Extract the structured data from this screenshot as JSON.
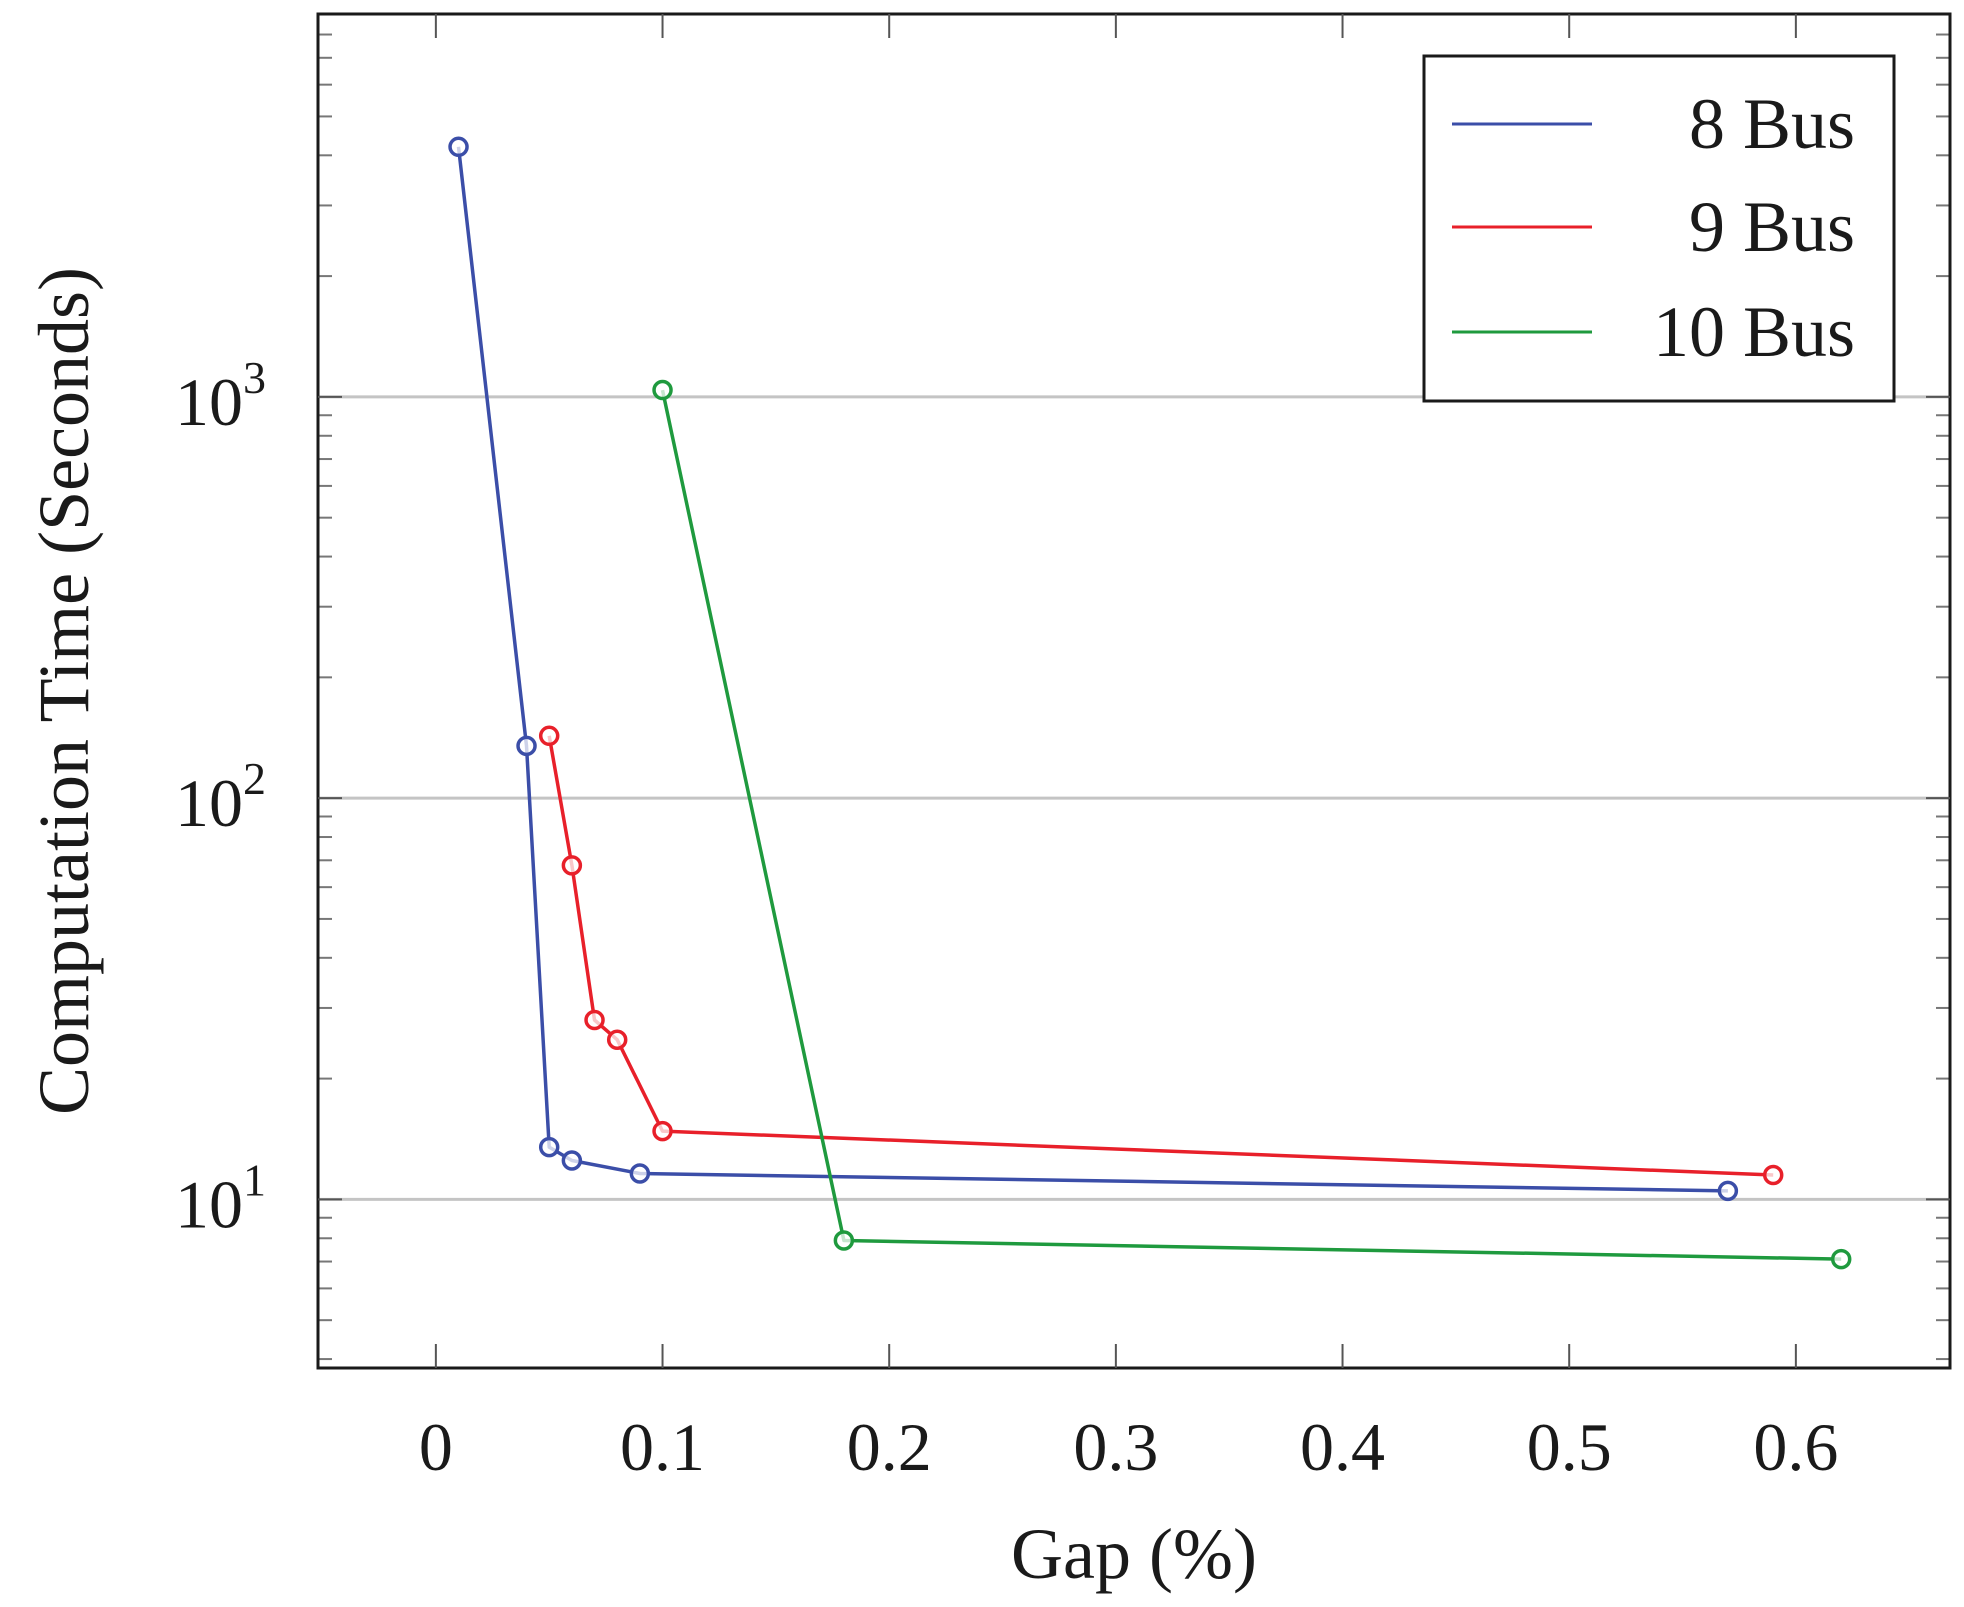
{
  "chart_data": {
    "type": "line",
    "title": "",
    "xlabel": "Gap (%)",
    "ylabel": "Computation Time (Seconds)",
    "x_scale": "linear",
    "y_scale": "log",
    "xlim": [
      -0.052,
      0.668
    ],
    "ylim": [
      3.8,
      9000
    ],
    "x_ticks": [
      0,
      0.1,
      0.2,
      0.3,
      0.4,
      0.5,
      0.6
    ],
    "x_tick_labels": [
      "0",
      "0.1",
      "0.2",
      "0.3",
      "0.4",
      "0.5",
      "0.6"
    ],
    "y_ticks": [
      10,
      100,
      1000
    ],
    "y_tick_labels": [
      {
        "base": "10",
        "exp": "1"
      },
      {
        "base": "10",
        "exp": "2"
      },
      {
        "base": "10",
        "exp": "3"
      }
    ],
    "grid": "horizontal-major",
    "legend_position": "top-right",
    "series": [
      {
        "name": "8 Bus",
        "color": "#3b4ea8",
        "x": [
          0.01,
          0.04,
          0.05,
          0.06,
          0.09,
          0.57
        ],
        "y": [
          4200,
          135,
          13.5,
          12.5,
          11.6,
          10.5
        ]
      },
      {
        "name": "9 Bus",
        "color": "#e8202a",
        "x": [
          0.05,
          0.06,
          0.07,
          0.08,
          0.1,
          0.59
        ],
        "y": [
          143,
          68,
          28,
          25,
          14.8,
          11.5
        ]
      },
      {
        "name": "10 Bus",
        "color": "#1f9a3e",
        "x": [
          0.1,
          0.18,
          0.62
        ],
        "y": [
          1040,
          7.9,
          7.1
        ]
      }
    ]
  }
}
